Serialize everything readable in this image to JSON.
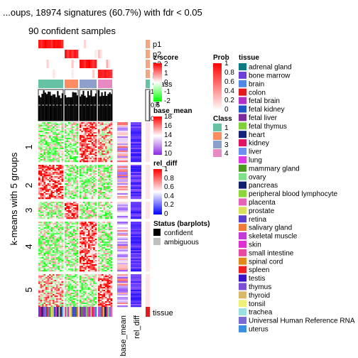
{
  "chart_data": {
    "type": "heatmap",
    "title": "...oups, 18974 signatures (60.7%) with fdr < 0.05",
    "subtitle": "90 confident samples",
    "row_title": "k-means with 5 groups",
    "row_groups": [
      "1",
      "2",
      "3",
      "4",
      "5"
    ],
    "column_classes": [
      "1",
      "2",
      "3",
      "4"
    ],
    "annotation_labels": {
      "p1": "p1",
      "p2": "p2",
      "p3": "p3",
      "p4": "p4",
      "class": "Class",
      "silhouette": "silhouette",
      "tissue": "tissue",
      "base_mean": "base_mean",
      "rel_diff": "rel_diff"
    },
    "legends": {
      "prob": {
        "title": "Prob",
        "ticks": [
          "1",
          "0.8",
          "0.6",
          "0.4",
          "0.2",
          "0"
        ]
      },
      "zscore": {
        "title": "z-score",
        "ticks": [
          "2",
          "1",
          "0",
          "-1",
          "-2"
        ]
      },
      "class": {
        "title": "Class",
        "items": [
          "1",
          "2",
          "3",
          "4"
        ],
        "colors": [
          "#66c2a5",
          "#fc8d62",
          "#8da0cb",
          "#e78ac3"
        ]
      },
      "base_mean": {
        "title": "base_mean",
        "ticks": [
          "18",
          "16",
          "14",
          "12",
          "10"
        ]
      },
      "rel_diff": {
        "title": "rel_diff",
        "ticks": [
          "1",
          "0.8",
          "0.6",
          "0.4",
          "0.2",
          "0"
        ]
      },
      "status": {
        "title": "Status (barplots)",
        "items": [
          "confident",
          "ambiguous"
        ],
        "colors": [
          "#000000",
          "#bebebe"
        ]
      },
      "silhouette_ticks": [
        "1",
        "0.5",
        "0"
      ],
      "tissue": {
        "title": "tissue",
        "items": [
          {
            "name": "adrenal gland",
            "color": "#0b7a83"
          },
          {
            "name": "bone marrow",
            "color": "#6c3fd6"
          },
          {
            "name": "brain",
            "color": "#4f87e8"
          },
          {
            "name": "colon",
            "color": "#e31a1c"
          },
          {
            "name": "fetal brain",
            "color": "#b031c8"
          },
          {
            "name": "fetal kidney",
            "color": "#1f56c4"
          },
          {
            "name": "fetal liver",
            "color": "#7a2b9c"
          },
          {
            "name": "fetal thymus",
            "color": "#7fd13b"
          },
          {
            "name": "heart",
            "color": "#14237a"
          },
          {
            "name": "kidney",
            "color": "#e0115f"
          },
          {
            "name": "liver",
            "color": "#6f8ff0"
          },
          {
            "name": "lung",
            "color": "#dd3be0"
          },
          {
            "name": "mammary gland",
            "color": "#4b9a1f"
          },
          {
            "name": "ovary",
            "color": "#7fe08a"
          },
          {
            "name": "pancreas",
            "color": "#0e1f6b"
          },
          {
            "name": "peripheral blood lymphocyte",
            "color": "#8bd63b"
          },
          {
            "name": "placenta",
            "color": "#e664b8"
          },
          {
            "name": "prostate",
            "color": "#d9e05a"
          },
          {
            "name": "retina",
            "color": "#5a3fd0"
          },
          {
            "name": "salivary gland",
            "color": "#f07a3a"
          },
          {
            "name": "skeletal muscle",
            "color": "#c23bd6"
          },
          {
            "name": "skin",
            "color": "#e02fd0"
          },
          {
            "name": "small intestine",
            "color": "#e64aa0"
          },
          {
            "name": "spinal cord",
            "color": "#e08a1c"
          },
          {
            "name": "spleen",
            "color": "#f02020"
          },
          {
            "name": "testis",
            "color": "#3a10c8"
          },
          {
            "name": "thymus",
            "color": "#7b4fd6"
          },
          {
            "name": "thyroid",
            "color": "#d9b86a"
          },
          {
            "name": "tonsil",
            "color": "#eef07a"
          },
          {
            "name": "trachea",
            "color": "#9ae0e0"
          },
          {
            "name": "Universal Human Reference RNA",
            "color": "#7a6ad8"
          },
          {
            "name": "uterus",
            "color": "#3a8fe0"
          }
        ]
      }
    }
  }
}
